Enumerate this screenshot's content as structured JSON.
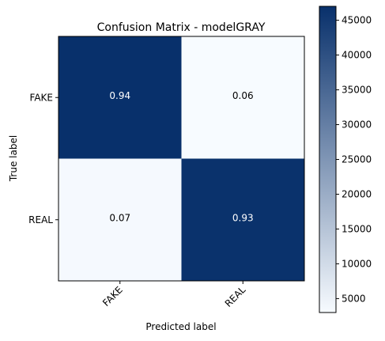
{
  "chart_data": {
    "type": "heatmap",
    "title": "Confusion Matrix - modelGRAY",
    "xlabel": "Predicted label",
    "ylabel": "True label",
    "x_categories": [
      "FAKE",
      "REAL"
    ],
    "y_categories": [
      "FAKE",
      "REAL"
    ],
    "cell_labels": [
      [
        "0.94",
        "0.06"
      ],
      [
        "0.07",
        "0.93"
      ]
    ],
    "values": [
      [
        47000,
        3000
      ],
      [
        3400,
        46600
      ]
    ],
    "colormap": "Blues",
    "colors": {
      "low": "#f7fbff",
      "high": "#08306b",
      "text_on_dark": "#ffffff",
      "text_on_light": "#000000"
    },
    "colorbar": {
      "range": [
        3000,
        47000
      ],
      "ticks": [
        5000,
        10000,
        15000,
        20000,
        25000,
        30000,
        35000,
        40000,
        45000
      ],
      "tick_labels": [
        "5000",
        "10000",
        "15000",
        "20000",
        "25000",
        "30000",
        "35000",
        "40000",
        "45000"
      ]
    },
    "grid": false
  }
}
